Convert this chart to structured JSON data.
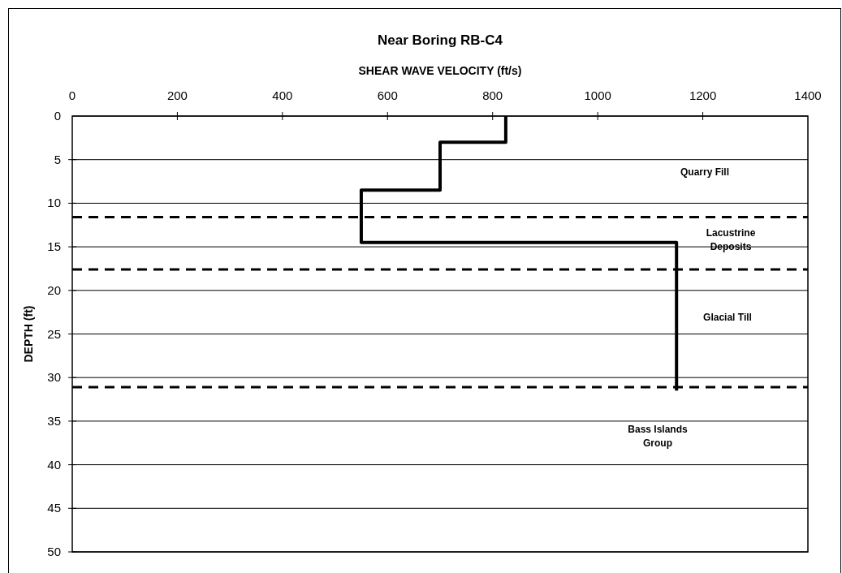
{
  "chart_data": {
    "type": "line",
    "title": "Near Boring RB-C4",
    "xlabel": "SHEAR WAVE VELOCITY (ft/s)",
    "ylabel": "DEPTH (ft)",
    "xlim": [
      0,
      1400
    ],
    "xticks": [
      0,
      200,
      400,
      600,
      800,
      1000,
      1200,
      1400
    ],
    "ylim": [
      50,
      0
    ],
    "yticks": [
      0,
      5,
      10,
      15,
      20,
      25,
      30,
      35,
      40,
      45,
      50
    ],
    "grid": "y",
    "marker": "none",
    "line_style": "solid",
    "series": [
      {
        "color": "#000000",
        "x": [
          825,
          825,
          700,
          700,
          550,
          550,
          1150,
          1150
        ],
        "values": [
          0,
          3,
          3,
          8.5,
          8.5,
          14.5,
          14.5,
          31.5
        ]
      }
    ],
    "ref_lines": [
      {
        "axis": "y",
        "value": 11.6,
        "color": "#000000",
        "line_style": "dashed"
      },
      {
        "axis": "y",
        "value": 17.6,
        "color": "#000000",
        "line_style": "dashed"
      },
      {
        "axis": "y",
        "value": 31.1,
        "color": "#000000",
        "line_style": "dashed"
      }
    ],
    "annotations": [
      "Quarry Fill",
      "Lacustrine\nDeposits",
      "Glacial Till",
      "Bass Islands\nGroup"
    ]
  }
}
